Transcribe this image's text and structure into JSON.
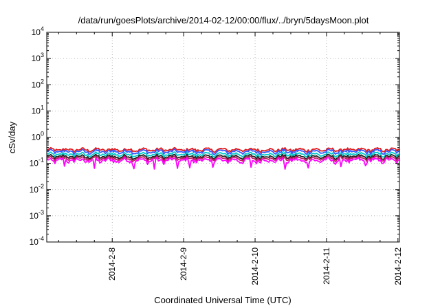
{
  "chart_data": {
    "type": "line",
    "title": "/data/run/goesPlots/archive/2014-02-12/00:00/flux/../bryn/5daysMoon.plot",
    "xlabel": "Coordinated Universal Time (UTC)",
    "ylabel": "cSv/day",
    "yscale": "log",
    "ylim": [
      0.0001,
      10000
    ],
    "xlim": [
      "2014-02-07 02:00",
      "2014-02-12 00:30"
    ],
    "x_ticks": [
      "2014-2-8",
      "2014-2-9",
      "2014-2-10",
      "2014-2-11",
      "2014-2-12"
    ],
    "y_ticks": [
      {
        "base": "10",
        "exp": "-4",
        "value": 0.0001
      },
      {
        "base": "10",
        "exp": "-3",
        "value": 0.001
      },
      {
        "base": "10",
        "exp": "-2",
        "value": 0.01
      },
      {
        "base": "10",
        "exp": "-1",
        "value": 0.1
      },
      {
        "base": "10",
        "exp": "0",
        "value": 1
      },
      {
        "base": "10",
        "exp": "1",
        "value": 10
      },
      {
        "base": "10",
        "exp": "2",
        "value": 100
      },
      {
        "base": "10",
        "exp": "3",
        "value": 1000
      },
      {
        "base": "10",
        "exp": "4",
        "value": 10000
      }
    ],
    "grid": true,
    "legend": "none",
    "series": [
      {
        "color": "#e41a1c",
        "typical": 0.33,
        "amplitude": 0.14,
        "dips": false
      },
      {
        "color": "#3355ff",
        "typical": 0.28,
        "amplitude": 0.14,
        "dips": false
      },
      {
        "color": "#00c8c8",
        "typical": 0.22,
        "amplitude": 0.11,
        "dips": false
      },
      {
        "color": "#222222",
        "typical": 0.18,
        "amplitude": 0.09,
        "dips": false
      },
      {
        "color": "#c02060",
        "typical": 0.155,
        "amplitude": 0.08,
        "dips": false
      },
      {
        "color": "#ff00ff",
        "typical": 0.13,
        "amplitude": 0.08,
        "dips": true
      }
    ]
  }
}
